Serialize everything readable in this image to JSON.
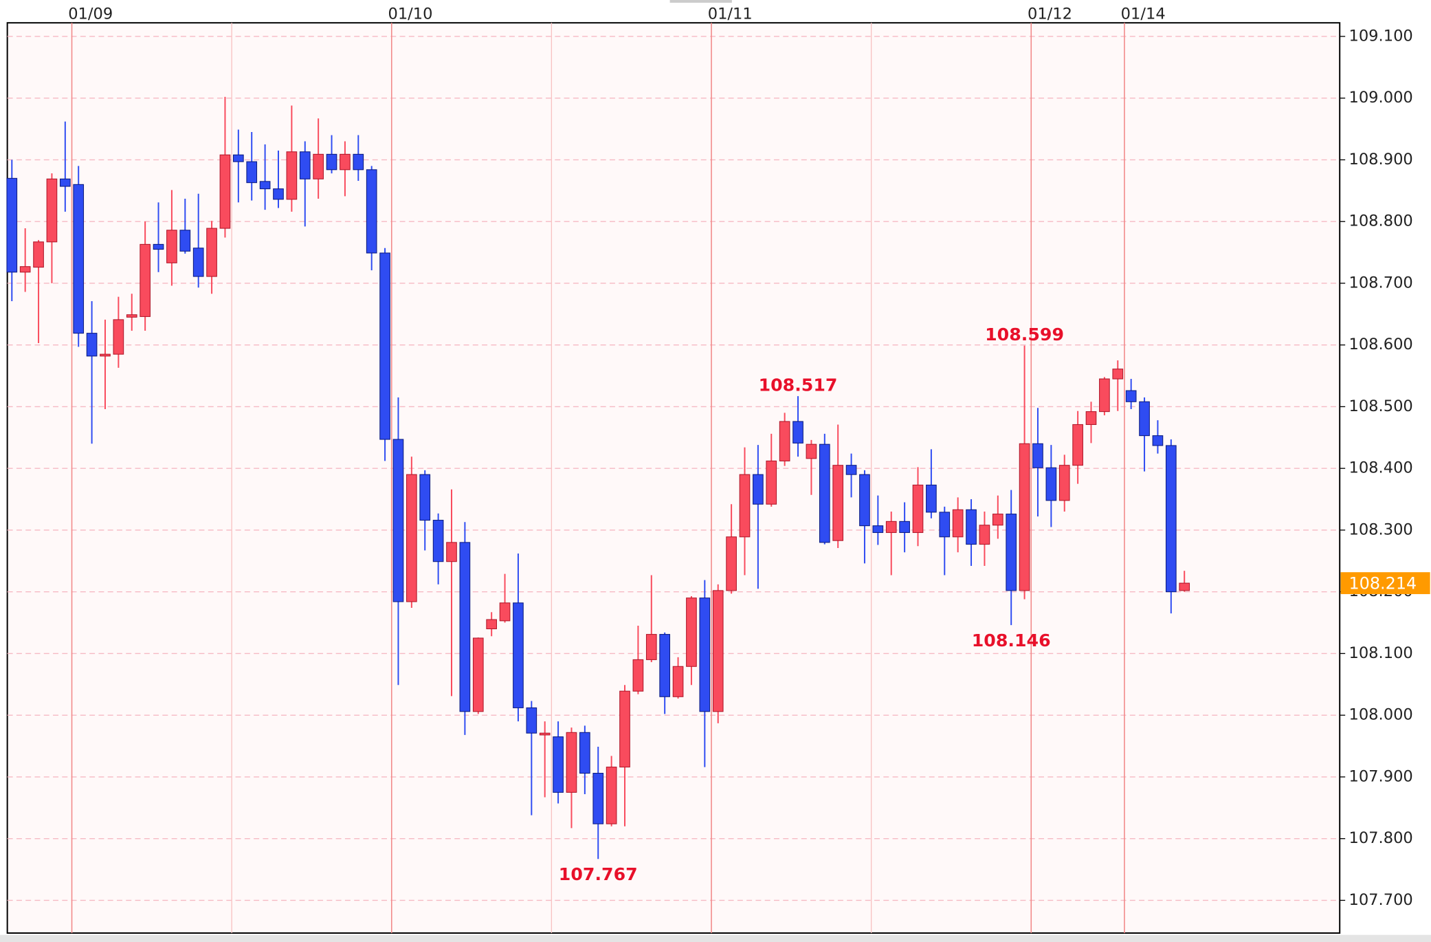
{
  "chart_data": {
    "type": "candlestick",
    "categories": [
      null,
      null,
      null,
      null,
      null,
      "01/09",
      null,
      null,
      null,
      null,
      null,
      null,
      null,
      null,
      null,
      null,
      null,
      null,
      null,
      null,
      null,
      null,
      null,
      null,
      null,
      null,
      null,
      null,
      null,
      "01/10",
      null,
      null,
      null,
      null,
      null,
      null,
      null,
      null,
      null,
      null,
      null,
      null,
      null,
      null,
      null,
      null,
      null,
      null,
      null,
      null,
      null,
      null,
      null,
      "01/11",
      null,
      null,
      null,
      null,
      null,
      null,
      null,
      null,
      null,
      null,
      null,
      null,
      null,
      null,
      null,
      null,
      null,
      null,
      null,
      null,
      null,
      null,
      null,
      "01/12",
      null,
      null,
      null,
      null,
      null,
      null,
      "01/14",
      null,
      null,
      null,
      null
    ],
    "open": [
      108.87,
      108.718,
      108.726,
      108.767,
      108.869,
      108.86,
      108.619,
      108.582,
      108.585,
      108.645,
      108.646,
      108.763,
      108.733,
      108.786,
      108.757,
      108.711,
      108.789,
      108.908,
      108.897,
      108.865,
      108.853,
      108.836,
      108.913,
      108.869,
      108.909,
      108.884,
      108.909,
      108.884,
      108.749,
      108.447,
      108.184,
      108.39,
      108.316,
      108.249,
      108.28,
      108.006,
      108.14,
      108.153,
      108.182,
      108.012,
      107.968,
      107.965,
      107.875,
      107.972,
      107.906,
      107.824,
      107.916,
      108.039,
      108.09,
      108.131,
      108.03,
      108.079,
      108.19,
      108.006,
      108.202,
      108.289,
      108.39,
      108.342,
      108.412,
      108.476,
      108.416,
      108.439,
      108.283,
      108.405,
      108.39,
      108.307,
      108.296,
      108.314,
      108.296,
      108.373,
      108.329,
      108.289,
      108.333,
      108.277,
      108.308,
      108.326,
      108.202,
      108.44,
      108.401,
      108.348,
      108.405,
      108.471,
      108.492,
      108.545,
      108.526,
      108.508,
      108.453,
      108.437,
      108.202
    ],
    "high": [
      108.9,
      108.789,
      108.77,
      108.878,
      108.962,
      108.89,
      108.671,
      108.641,
      108.678,
      108.683,
      108.8,
      108.831,
      108.851,
      108.837,
      108.845,
      108.801,
      109.002,
      108.949,
      108.945,
      108.925,
      108.915,
      108.988,
      108.93,
      108.967,
      108.94,
      108.93,
      108.94,
      108.89,
      108.757,
      108.515,
      108.419,
      108.397,
      108.327,
      108.366,
      108.313,
      108.126,
      108.167,
      108.229,
      108.262,
      108.023,
      107.99,
      107.99,
      107.98,
      107.983,
      107.949,
      107.934,
      108.049,
      108.145,
      108.227,
      108.134,
      108.094,
      108.193,
      108.219,
      108.212,
      108.342,
      108.434,
      108.438,
      108.456,
      108.49,
      108.517,
      108.446,
      108.456,
      108.471,
      108.424,
      108.397,
      108.356,
      108.33,
      108.345,
      108.402,
      108.431,
      108.338,
      108.353,
      108.35,
      108.33,
      108.356,
      108.365,
      108.599,
      108.498,
      108.438,
      108.422,
      108.493,
      108.508,
      108.548,
      108.575,
      108.545,
      108.515,
      108.478,
      108.447,
      108.234
    ],
    "low": [
      108.671,
      108.686,
      108.603,
      108.7,
      108.816,
      108.597,
      108.44,
      108.496,
      108.563,
      108.623,
      108.623,
      108.718,
      108.696,
      108.748,
      108.693,
      108.683,
      108.774,
      108.831,
      108.834,
      108.819,
      108.822,
      108.816,
      108.792,
      108.837,
      108.878,
      108.841,
      108.866,
      108.721,
      108.412,
      108.049,
      108.174,
      108.267,
      108.212,
      108.031,
      107.968,
      108.002,
      108.128,
      108.15,
      107.99,
      107.838,
      107.867,
      107.857,
      107.817,
      107.872,
      107.767,
      107.82,
      107.82,
      108.034,
      108.086,
      108.002,
      108.027,
      108.049,
      107.916,
      107.987,
      108.197,
      108.227,
      108.205,
      108.338,
      108.404,
      108.419,
      108.357,
      108.277,
      108.271,
      108.353,
      108.246,
      108.276,
      108.227,
      108.264,
      108.274,
      108.319,
      108.227,
      108.264,
      108.242,
      108.242,
      108.286,
      108.146,
      108.188,
      108.322,
      108.305,
      108.33,
      108.375,
      108.441,
      108.486,
      108.493,
      108.496,
      108.395,
      108.424,
      108.165,
      108.2
    ],
    "close": [
      108.718,
      108.727,
      108.767,
      108.869,
      108.857,
      108.619,
      108.582,
      108.585,
      108.641,
      108.649,
      108.763,
      108.755,
      108.786,
      108.752,
      108.711,
      108.789,
      108.908,
      108.897,
      108.863,
      108.853,
      108.836,
      108.913,
      108.869,
      108.909,
      108.884,
      108.909,
      108.884,
      108.749,
      108.447,
      108.184,
      108.39,
      108.316,
      108.249,
      108.28,
      108.006,
      108.125,
      108.155,
      108.182,
      108.012,
      107.971,
      107.971,
      107.875,
      107.972,
      107.906,
      107.824,
      107.916,
      108.039,
      108.09,
      108.131,
      108.03,
      108.079,
      108.19,
      108.006,
      108.202,
      108.289,
      108.39,
      108.342,
      108.412,
      108.476,
      108.441,
      108.439,
      108.28,
      108.405,
      108.39,
      108.307,
      108.296,
      108.314,
      108.296,
      108.373,
      108.329,
      108.289,
      108.333,
      108.277,
      108.308,
      108.326,
      108.202,
      108.44,
      108.401,
      108.348,
      108.405,
      108.471,
      108.492,
      108.545,
      108.561,
      108.508,
      108.453,
      108.437,
      108.2,
      108.214
    ],
    "up_color": "#f94b5d",
    "down_color": "#2f4cf2",
    "annotations": [
      108.517,
      108.599,
      107.767,
      108.146
    ],
    "ylim": [
      107.647,
      109.122
    ],
    "yticks": [
      {
        "value": 109.1,
        "label": "109.100"
      },
      {
        "value": 109.0,
        "label": "109.000"
      },
      {
        "value": 108.9,
        "label": "108.900"
      },
      {
        "value": 108.8,
        "label": "108.800"
      },
      {
        "value": 108.7,
        "label": "108.700"
      },
      {
        "value": 108.6,
        "label": "108.600"
      },
      {
        "value": 108.5,
        "label": "108.500"
      },
      {
        "value": 108.4,
        "label": "108.400"
      },
      {
        "value": 108.3,
        "label": "108.300"
      },
      {
        "value": 108.2,
        "label": "108.200"
      },
      {
        "value": 108.1,
        "label": "108.100"
      },
      {
        "value": 108.0,
        "label": "108.000"
      },
      {
        "value": 107.9,
        "label": "107.900"
      },
      {
        "value": 107.8,
        "label": "107.800"
      },
      {
        "value": 107.7,
        "label": "107.700"
      }
    ],
    "grid": true
  }
}
